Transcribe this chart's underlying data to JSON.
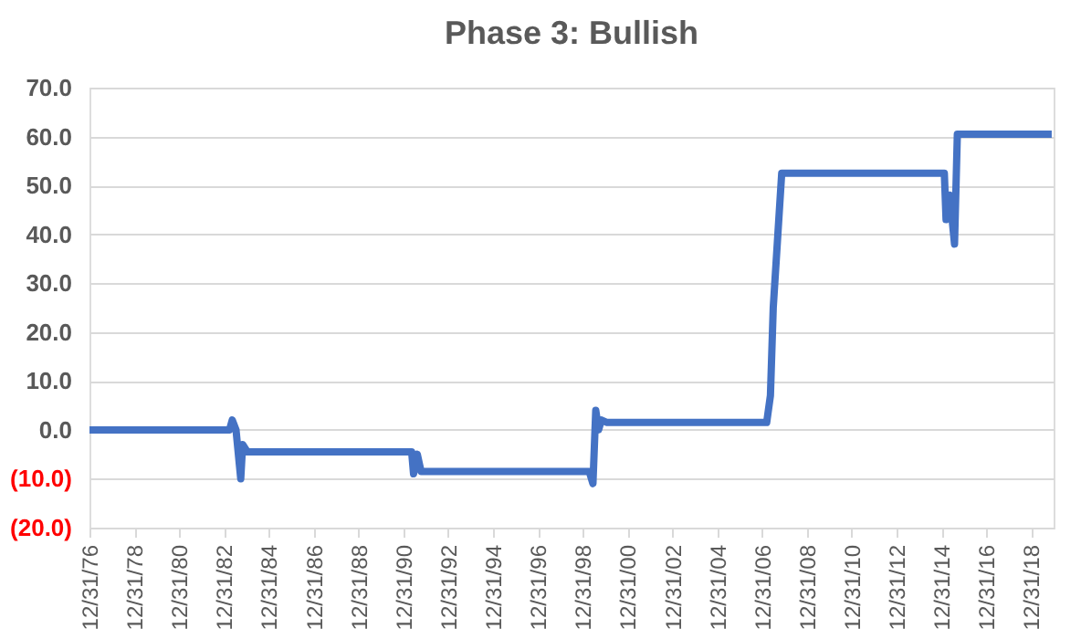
{
  "chart_data": {
    "type": "line",
    "title": "Phase 3: Bullish",
    "x": [
      "1976-12-31",
      "1983-03-31",
      "1983-05-15",
      "1983-07-15",
      "1983-09-30",
      "1983-10-31",
      "1984-01-15",
      "1991-05-15",
      "1991-06-15",
      "1991-08-15",
      "1991-10-15",
      "1999-04-15",
      "1999-06-15",
      "1999-07-31",
      "1999-09-15",
      "1999-10-31",
      "2000-01-31",
      "2007-03-15",
      "2007-05-15",
      "2007-06-30",
      "2007-11-15",
      "2015-02-15",
      "2015-03-15",
      "2015-05-15",
      "2015-07-31",
      "2015-09-15",
      "2019-11-30"
    ],
    "series": [
      {
        "color": "#4472c4",
        "values": [
          0,
          0,
          2,
          0,
          -10,
          -3,
          -4.5,
          -4.5,
          -9,
          -5,
          -8.5,
          -8.5,
          -11,
          4,
          0,
          2,
          1.5,
          1.5,
          7,
          25,
          52.5,
          52.5,
          43,
          48,
          38,
          60.5,
          60.5
        ]
      }
    ],
    "xlim": [
      "1976-12-31",
      "2019-12-31"
    ],
    "xticks": [
      {
        "value": "1976-12-31",
        "label": "12/31/76"
      },
      {
        "value": "1978-12-31",
        "label": "12/31/78"
      },
      {
        "value": "1980-12-31",
        "label": "12/31/80"
      },
      {
        "value": "1982-12-31",
        "label": "12/31/82"
      },
      {
        "value": "1984-12-31",
        "label": "12/31/84"
      },
      {
        "value": "1986-12-31",
        "label": "12/31/86"
      },
      {
        "value": "1988-12-31",
        "label": "12/31/88"
      },
      {
        "value": "1990-12-31",
        "label": "12/31/90"
      },
      {
        "value": "1992-12-31",
        "label": "12/31/92"
      },
      {
        "value": "1994-12-31",
        "label": "12/31/94"
      },
      {
        "value": "1996-12-31",
        "label": "12/31/96"
      },
      {
        "value": "1998-12-31",
        "label": "12/31/98"
      },
      {
        "value": "2000-12-31",
        "label": "12/31/00"
      },
      {
        "value": "2002-12-31",
        "label": "12/31/02"
      },
      {
        "value": "2004-12-31",
        "label": "12/31/04"
      },
      {
        "value": "2006-12-31",
        "label": "12/31/06"
      },
      {
        "value": "2008-12-31",
        "label": "12/31/08"
      },
      {
        "value": "2010-12-31",
        "label": "12/31/10"
      },
      {
        "value": "2012-12-31",
        "label": "12/31/12"
      },
      {
        "value": "2014-12-31",
        "label": "12/31/14"
      },
      {
        "value": "2016-12-31",
        "label": "12/31/16"
      },
      {
        "value": "2018-12-31",
        "label": "12/31/18"
      }
    ],
    "ylim": [
      -20,
      70
    ],
    "yticks": [
      {
        "value": -20,
        "label": "(20.0)"
      },
      {
        "value": -10,
        "label": "(10.0)"
      },
      {
        "value": 0,
        "label": "0.0"
      },
      {
        "value": 10,
        "label": "10.0"
      },
      {
        "value": 20,
        "label": "20.0"
      },
      {
        "value": 30,
        "label": "30.0"
      },
      {
        "value": 40,
        "label": "40.0"
      },
      {
        "value": 50,
        "label": "50.0"
      },
      {
        "value": 60,
        "label": "60.0"
      },
      {
        "value": 70,
        "label": "70.0"
      }
    ],
    "grid": "y",
    "legend": false,
    "marker": "none",
    "line_style": "solid"
  }
}
